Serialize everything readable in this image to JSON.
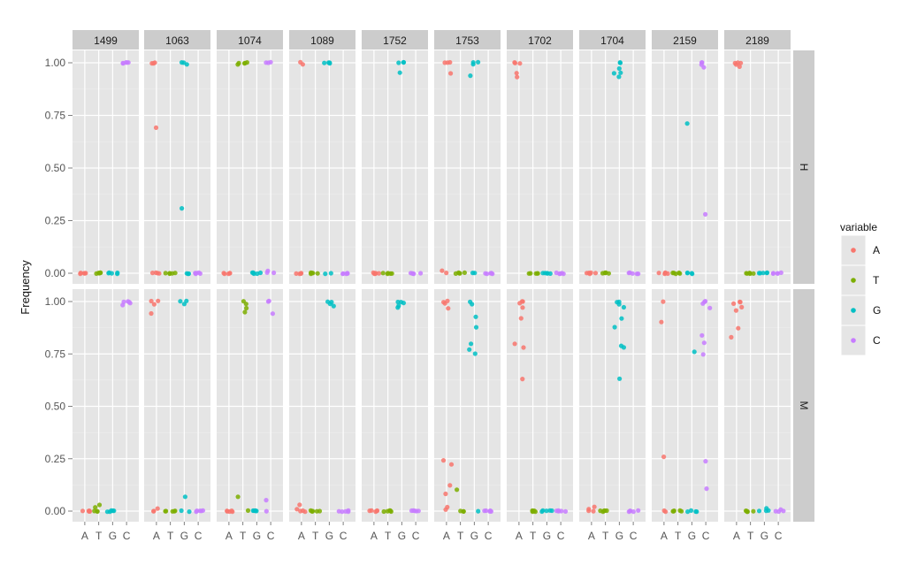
{
  "chart_data": {
    "type": "scatter",
    "ylabel": "Frequency",
    "xlabel": "",
    "ylim": [
      0,
      1
    ],
    "yticks": [
      "0.00",
      "0.25",
      "0.50",
      "0.75",
      "1.00"
    ],
    "x_categories": [
      "A",
      "T",
      "G",
      "C"
    ],
    "column_facets": [
      "1499",
      "1063",
      "1074",
      "1089",
      "1752",
      "1753",
      "1702",
      "1704",
      "2159",
      "2189"
    ],
    "row_facets": [
      "H",
      "M"
    ],
    "legend": {
      "title": "variable",
      "entries": [
        {
          "label": "A",
          "color": "#F8766D"
        },
        {
          "label": "T",
          "color": "#7CAE00"
        },
        {
          "label": "G",
          "color": "#00BFC4"
        },
        {
          "label": "C",
          "color": "#C77CFF"
        }
      ]
    },
    "panels": [
      {
        "row": "H",
        "col": "1499",
        "A": [
          0,
          0,
          0,
          0,
          0
        ],
        "T": [
          0,
          0,
          0,
          0,
          0
        ],
        "G": [
          0,
          0,
          0,
          0,
          0
        ],
        "C": [
          1,
          1,
          1,
          1,
          1
        ]
      },
      {
        "row": "H",
        "col": "1063",
        "A": [
          1,
          1,
          1,
          0.69,
          0,
          0,
          0,
          0
        ],
        "T": [
          0,
          0,
          0,
          0,
          0
        ],
        "G": [
          1,
          1,
          0.99,
          0.31,
          0,
          0,
          0
        ],
        "C": [
          0,
          0,
          0,
          0,
          0
        ]
      },
      {
        "row": "H",
        "col": "1074",
        "A": [
          0,
          0,
          0,
          0,
          0
        ],
        "T": [
          1,
          1,
          0.99,
          1,
          1
        ],
        "G": [
          0,
          0,
          0,
          0,
          0
        ],
        "C": [
          1,
          1,
          1,
          0.01,
          0,
          0
        ]
      },
      {
        "row": "H",
        "col": "1089",
        "A": [
          0.99,
          1,
          0,
          0,
          0,
          0
        ],
        "T": [
          0,
          0,
          0,
          0,
          0
        ],
        "G": [
          1,
          1,
          1,
          1,
          0,
          0
        ],
        "C": [
          0,
          0,
          0,
          0,
          0
        ]
      },
      {
        "row": "H",
        "col": "1752",
        "A": [
          0,
          0,
          0,
          0,
          0
        ],
        "T": [
          0,
          0,
          0,
          0,
          0
        ],
        "G": [
          1,
          1,
          1,
          0.95
        ],
        "C": [
          0,
          0,
          0,
          0,
          0
        ]
      },
      {
        "row": "H",
        "col": "1753",
        "A": [
          1,
          1,
          1,
          0.95,
          0.01,
          0
        ],
        "T": [
          0,
          0,
          0,
          0,
          0
        ],
        "G": [
          1,
          0.99,
          0.94,
          1,
          0,
          0
        ],
        "C": [
          0,
          0,
          0,
          0,
          0
        ]
      },
      {
        "row": "H",
        "col": "1702",
        "A": [
          1,
          1,
          1,
          0.95,
          0.93
        ],
        "T": [
          0,
          0,
          0,
          0,
          0
        ],
        "G": [
          0,
          0,
          0,
          0,
          0
        ],
        "C": [
          0,
          0,
          0,
          0,
          0
        ]
      },
      {
        "row": "H",
        "col": "1704",
        "A": [
          0,
          0,
          0,
          0,
          0
        ],
        "T": [
          0,
          0,
          0,
          0,
          0
        ],
        "G": [
          1,
          1,
          0.97,
          0.95,
          0.93,
          0.95
        ],
        "C": [
          0,
          0,
          0,
          0,
          0
        ]
      },
      {
        "row": "H",
        "col": "2159",
        "A": [
          0,
          0,
          0,
          0,
          0
        ],
        "T": [
          0,
          0,
          0,
          0,
          0
        ],
        "G": [
          0.71,
          0,
          0,
          0,
          0
        ],
        "C": [
          1,
          1,
          0.99,
          0.98,
          0.28
        ]
      },
      {
        "row": "H",
        "col": "2189",
        "A": [
          1,
          1,
          0.99,
          0.98,
          1
        ],
        "T": [
          0,
          0,
          0,
          0,
          0
        ],
        "G": [
          0,
          0,
          0,
          0,
          0
        ],
        "C": [
          0,
          0,
          0,
          0,
          0
        ]
      },
      {
        "row": "M",
        "col": "1499",
        "A": [
          0,
          0,
          0,
          0,
          0
        ],
        "T": [
          0,
          0.02,
          0.03,
          0,
          0
        ],
        "G": [
          0,
          0,
          0,
          0,
          0
        ],
        "C": [
          1,
          1,
          0.99,
          0.98,
          1
        ]
      },
      {
        "row": "M",
        "col": "1063",
        "A": [
          1,
          1,
          0.99,
          0.94,
          0,
          0.01,
          0
        ],
        "T": [
          0,
          0,
          0,
          0,
          0
        ],
        "G": [
          1,
          1,
          0.99,
          0.07,
          0,
          0
        ],
        "C": [
          0,
          0,
          0,
          0,
          0
        ]
      },
      {
        "row": "M",
        "col": "1074",
        "A": [
          0,
          0,
          0,
          0,
          0
        ],
        "T": [
          1,
          0.99,
          0.97,
          0.95,
          0.07,
          0
        ],
        "G": [
          0,
          0,
          0,
          0,
          0
        ],
        "C": [
          1,
          1,
          0.94,
          0.05,
          0
        ]
      },
      {
        "row": "M",
        "col": "1089",
        "A": [
          0.03,
          0.01,
          0,
          0,
          0
        ],
        "T": [
          0,
          0,
          0,
          0,
          0
        ],
        "G": [
          1,
          1,
          0.99,
          0.98
        ],
        "C": [
          0,
          0,
          0,
          0,
          0
        ]
      },
      {
        "row": "M",
        "col": "1752",
        "A": [
          0,
          0,
          0,
          0,
          0
        ],
        "T": [
          0,
          0,
          0,
          0,
          0
        ],
        "G": [
          1,
          0.99,
          0.98,
          0.97,
          1
        ],
        "C": [
          0,
          0,
          0,
          0,
          0
        ]
      },
      {
        "row": "M",
        "col": "1753",
        "A": [
          1,
          1,
          0.99,
          0.97,
          0.24,
          0.22,
          0.12,
          0.08,
          0.02,
          0.01
        ],
        "T": [
          0.1,
          0,
          0,
          0
        ],
        "G": [
          1,
          0.99,
          0.93,
          0.88,
          0.8,
          0.77,
          0.75,
          0
        ],
        "C": [
          0,
          0,
          0,
          0,
          0
        ]
      },
      {
        "row": "M",
        "col": "1702",
        "A": [
          1,
          1,
          0.99,
          0.97,
          0.92,
          0.8,
          0.78,
          0.63
        ],
        "T": [
          0,
          0,
          0,
          0,
          0
        ],
        "G": [
          0,
          0,
          0,
          0,
          0
        ],
        "C": [
          0,
          0,
          0,
          0,
          0
        ]
      },
      {
        "row": "M",
        "col": "1704",
        "A": [
          0.02,
          0.01,
          0,
          0
        ],
        "T": [
          0,
          0,
          0,
          0,
          0
        ],
        "G": [
          1,
          1,
          0.99,
          0.97,
          0.92,
          0.88,
          0.79,
          0.78,
          0.63
        ],
        "C": [
          0,
          0,
          0,
          0,
          0
        ]
      },
      {
        "row": "M",
        "col": "2159",
        "A": [
          1,
          0.9,
          0.26,
          0,
          0
        ],
        "T": [
          0,
          0,
          0,
          0,
          0
        ],
        "G": [
          0.76,
          0,
          0,
          0,
          0
        ],
        "C": [
          1,
          1,
          0.99,
          0.97,
          0.84,
          0.8,
          0.75,
          0.24,
          0.11
        ]
      },
      {
        "row": "M",
        "col": "2189",
        "A": [
          1,
          1,
          0.99,
          0.97,
          0.96,
          0.87,
          0.83
        ],
        "T": [
          0,
          0,
          0,
          0,
          0
        ],
        "G": [
          0,
          0.01,
          0,
          0
        ],
        "C": [
          0,
          0.01,
          0,
          0
        ]
      }
    ]
  }
}
